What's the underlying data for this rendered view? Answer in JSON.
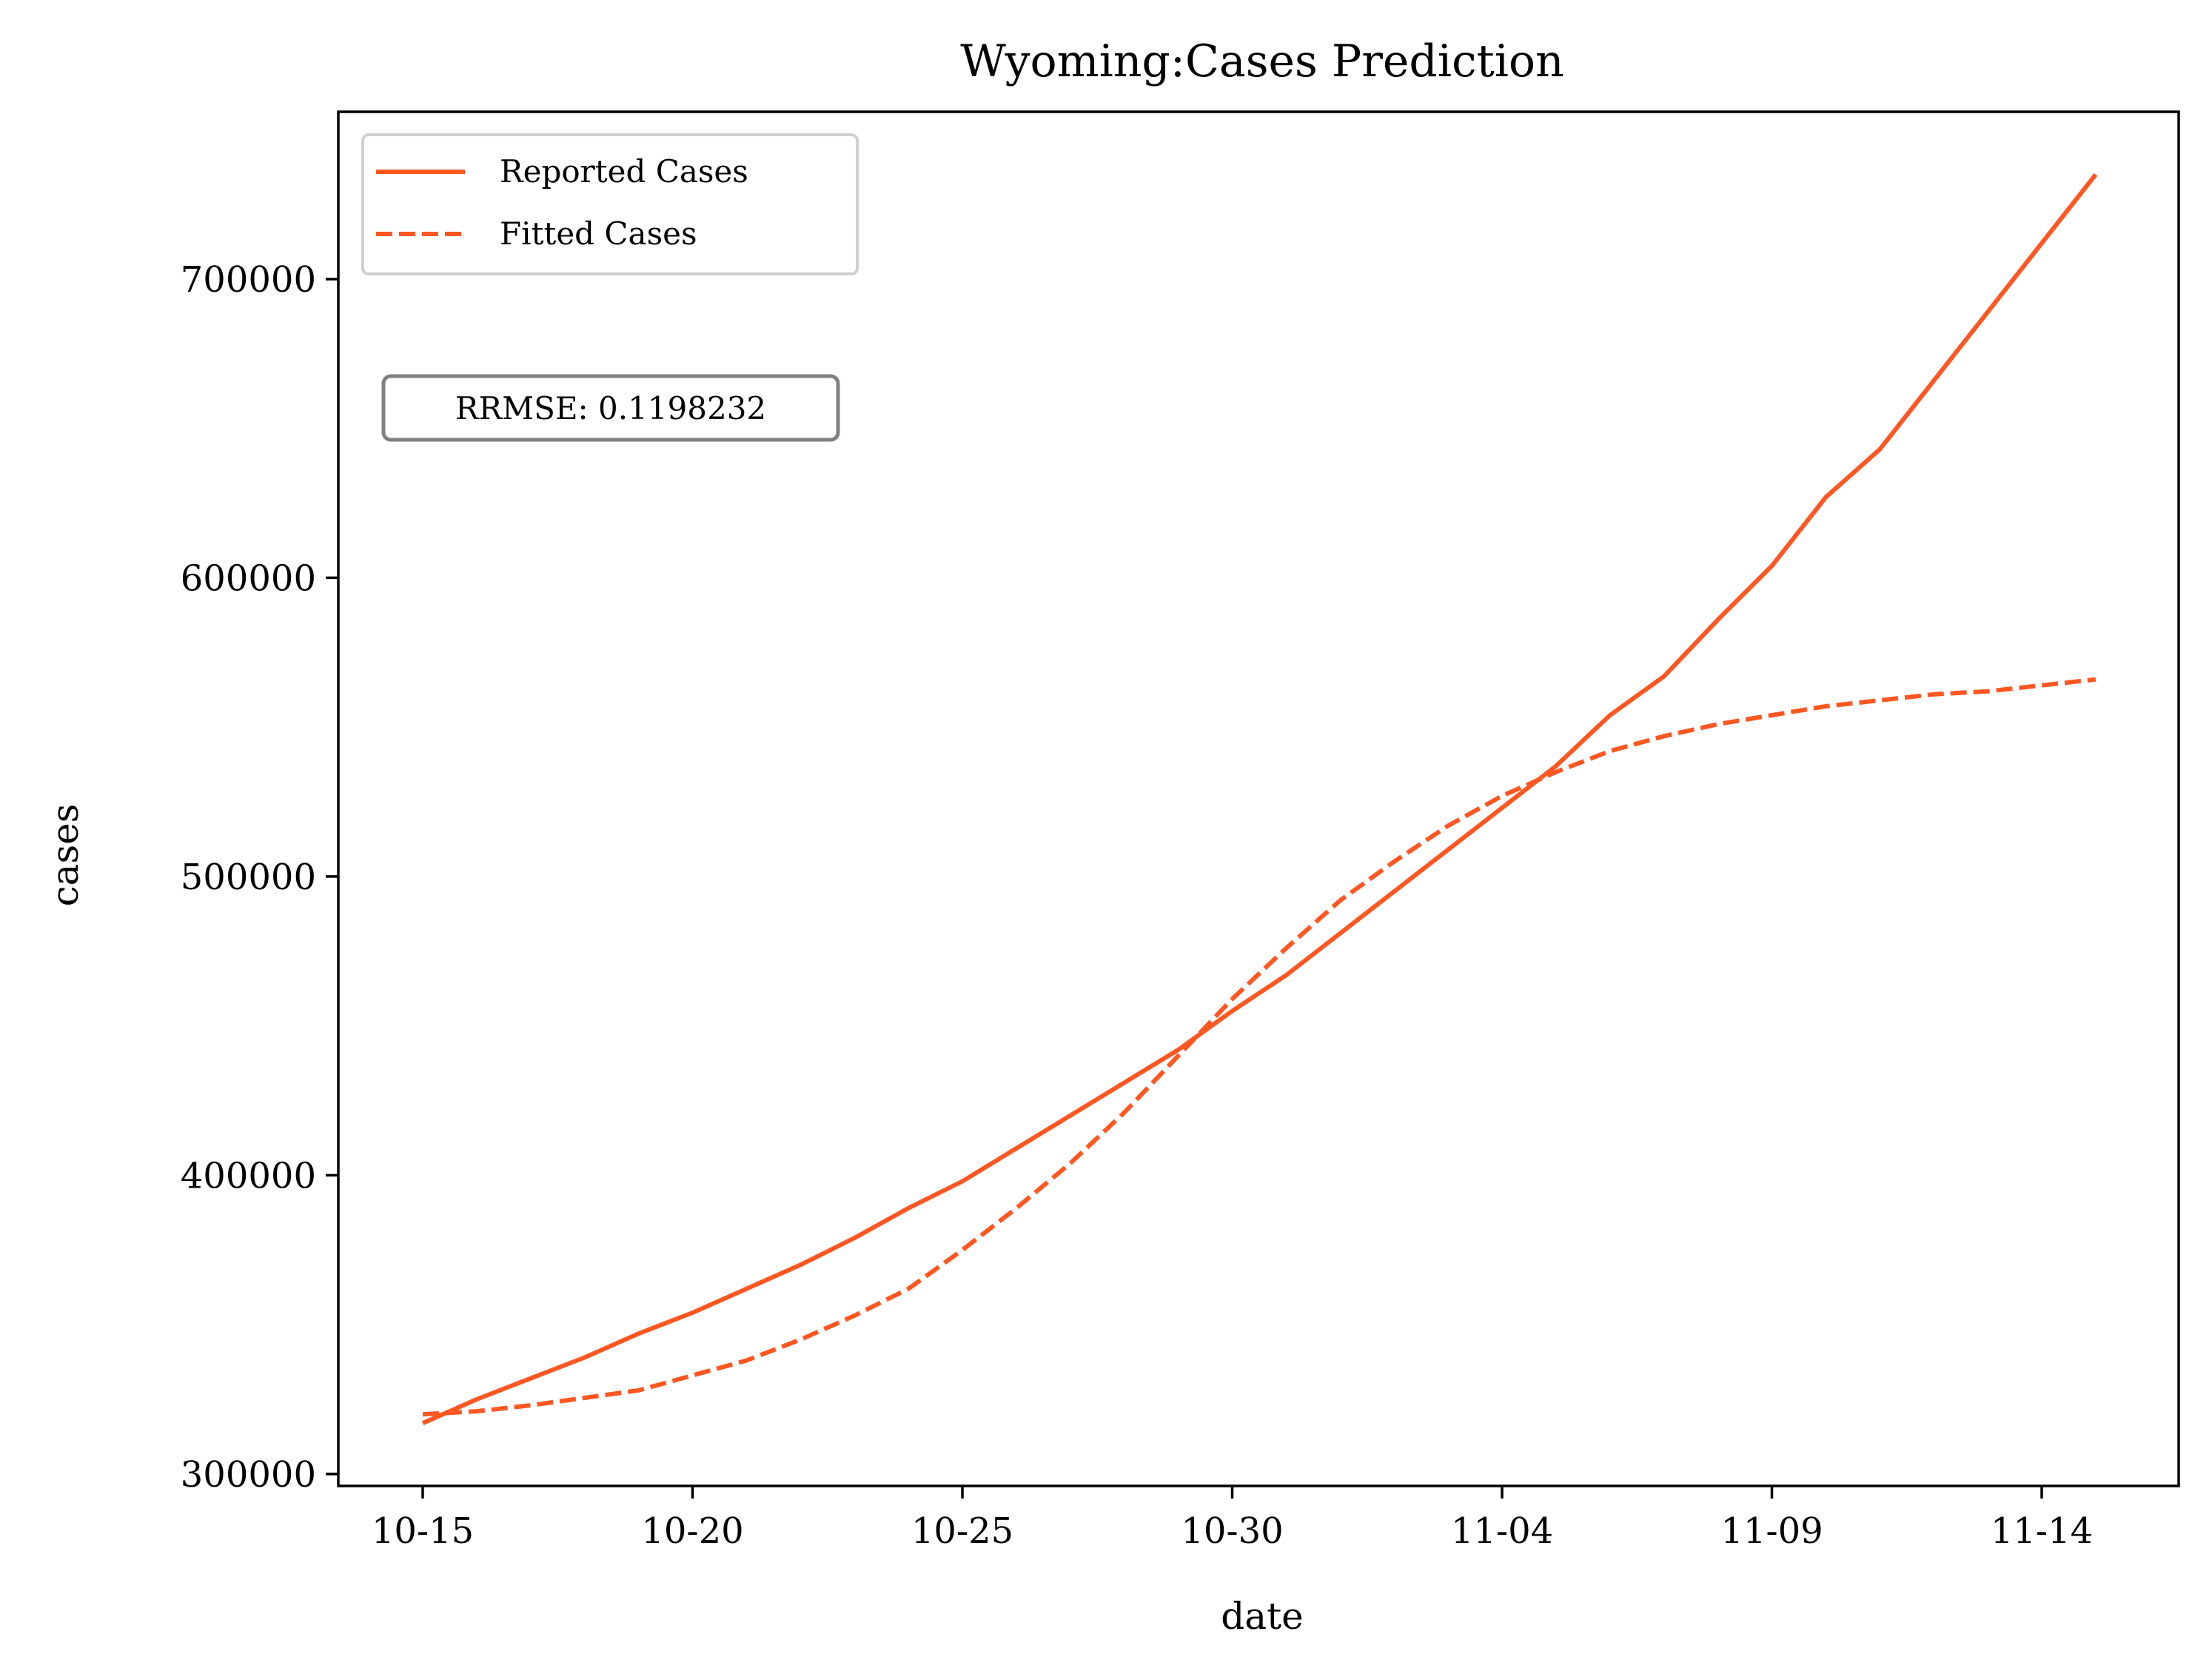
{
  "chart_data": {
    "type": "line",
    "title": "Wyoming:Cases Prediction",
    "xlabel": "date",
    "ylabel": "cases",
    "ylim": [
      296000,
      756000
    ],
    "x_tick_labels": [
      "10-15",
      "10-20",
      "10-25",
      "10-30",
      "11-04",
      "11-09",
      "11-14"
    ],
    "y_ticks": [
      300000,
      400000,
      500000,
      600000,
      700000
    ],
    "y_tick_labels": [
      "300000",
      "400000",
      "500000",
      "600000",
      "700000"
    ],
    "grid": false,
    "legend_position": "upper-left",
    "annotation": "RRMSE: 0.1198232",
    "x": [
      "10-15",
      "10-16",
      "10-17",
      "10-18",
      "10-19",
      "10-20",
      "10-21",
      "10-22",
      "10-23",
      "10-24",
      "10-25",
      "10-26",
      "10-27",
      "10-28",
      "10-29",
      "10-30",
      "10-31",
      "11-01",
      "11-02",
      "11-03",
      "11-04",
      "11-05",
      "11-06",
      "11-07",
      "11-08",
      "11-09",
      "11-10",
      "11-11",
      "11-12",
      "11-13",
      "11-14",
      "11-15"
    ],
    "series": [
      {
        "name": "Reported Cases",
        "style": "solid",
        "color": "#ff5722",
        "values": [
          317000,
          325000,
          332000,
          339000,
          347000,
          354000,
          362000,
          370000,
          379000,
          389000,
          398000,
          409000,
          420000,
          431000,
          442000,
          455000,
          467000,
          481000,
          495000,
          509000,
          523000,
          537000,
          554000,
          567000,
          586000,
          604000,
          627000,
          643000,
          666000,
          689000,
          712000,
          735000
        ]
      },
      {
        "name": "Fitted Cases",
        "style": "dashed",
        "color": "#ff5722",
        "values": [
          320000,
          321000,
          323000,
          325500,
          328000,
          333000,
          338000,
          345000,
          353000,
          362000,
          375000,
          389000,
          404000,
          421000,
          440000,
          459000,
          476000,
          492000,
          505000,
          517000,
          527000,
          535000,
          542000,
          547000,
          551000,
          554000,
          557000,
          559000,
          561000,
          562000,
          564000,
          566000
        ]
      }
    ]
  }
}
